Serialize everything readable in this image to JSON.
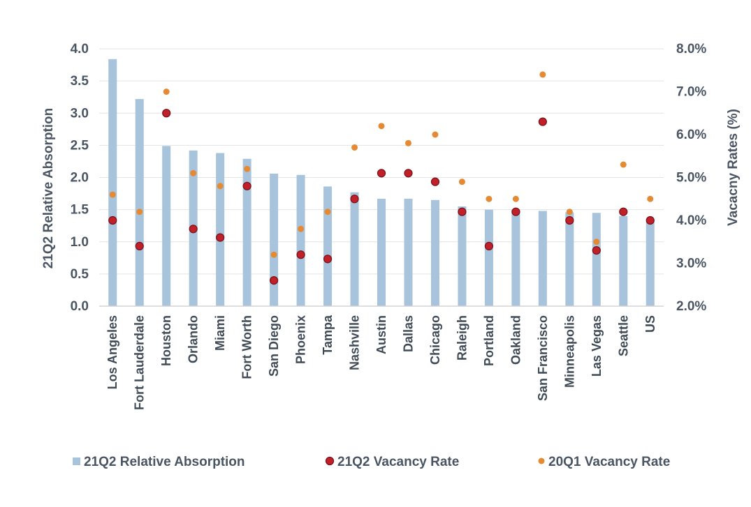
{
  "chart_data": {
    "type": "bar",
    "categories": [
      "Los Angeles",
      "Fort Lauderdale",
      "Houston",
      "Orlando",
      "Miami",
      "Fort Worth",
      "San Diego",
      "Phoenix",
      "Tampa",
      "Nashville",
      "Austin",
      "Dallas",
      "Chicago",
      "Raleigh",
      "Portland",
      "Oakland",
      "San Francisco",
      "Minneapolis",
      "Las Vegas",
      "Seattle",
      "US"
    ],
    "series": [
      {
        "name": "21Q2 Relative Absorption",
        "kind": "bar",
        "axis": "left",
        "color": "#a7c4dc",
        "values": [
          3.84,
          3.22,
          2.49,
          2.42,
          2.38,
          2.29,
          2.06,
          2.04,
          1.86,
          1.77,
          1.67,
          1.67,
          1.65,
          1.55,
          1.5,
          1.5,
          1.48,
          1.46,
          1.45,
          1.4,
          1.35
        ]
      },
      {
        "name": "21Q2 Vacancy Rate",
        "kind": "dot",
        "axis": "right",
        "color": "#c0202a",
        "values": [
          4.0,
          3.4,
          6.5,
          3.8,
          3.6,
          4.8,
          2.6,
          3.2,
          3.1,
          4.5,
          5.1,
          5.1,
          4.9,
          4.2,
          3.4,
          4.2,
          6.3,
          4.0,
          3.3,
          4.2,
          4.0
        ]
      },
      {
        "name": "20Q1 Vacancy Rate",
        "kind": "dot",
        "axis": "right",
        "color": "#e58a33",
        "values": [
          4.6,
          4.2,
          7.0,
          5.1,
          4.8,
          5.2,
          3.2,
          3.8,
          4.2,
          5.7,
          6.2,
          5.8,
          6.0,
          4.9,
          4.5,
          4.5,
          7.4,
          4.2,
          3.5,
          5.3,
          4.5
        ]
      }
    ],
    "y_left": {
      "label": "21Q2 Relative Absorption",
      "ylim": [
        0,
        4.0
      ],
      "ticks": [
        "0.0",
        "0.5",
        "1.0",
        "1.5",
        "2.0",
        "2.5",
        "3.0",
        "3.5",
        "4.0"
      ]
    },
    "y_right": {
      "label": "Vacacny Rates (%)",
      "ylim": [
        2.0,
        8.0
      ],
      "ticks": [
        "2.0%",
        "3.0%",
        "4.0%",
        "5.0%",
        "6.0%",
        "7.0%",
        "8.0%"
      ]
    },
    "grid": true,
    "legend": "bottom"
  }
}
